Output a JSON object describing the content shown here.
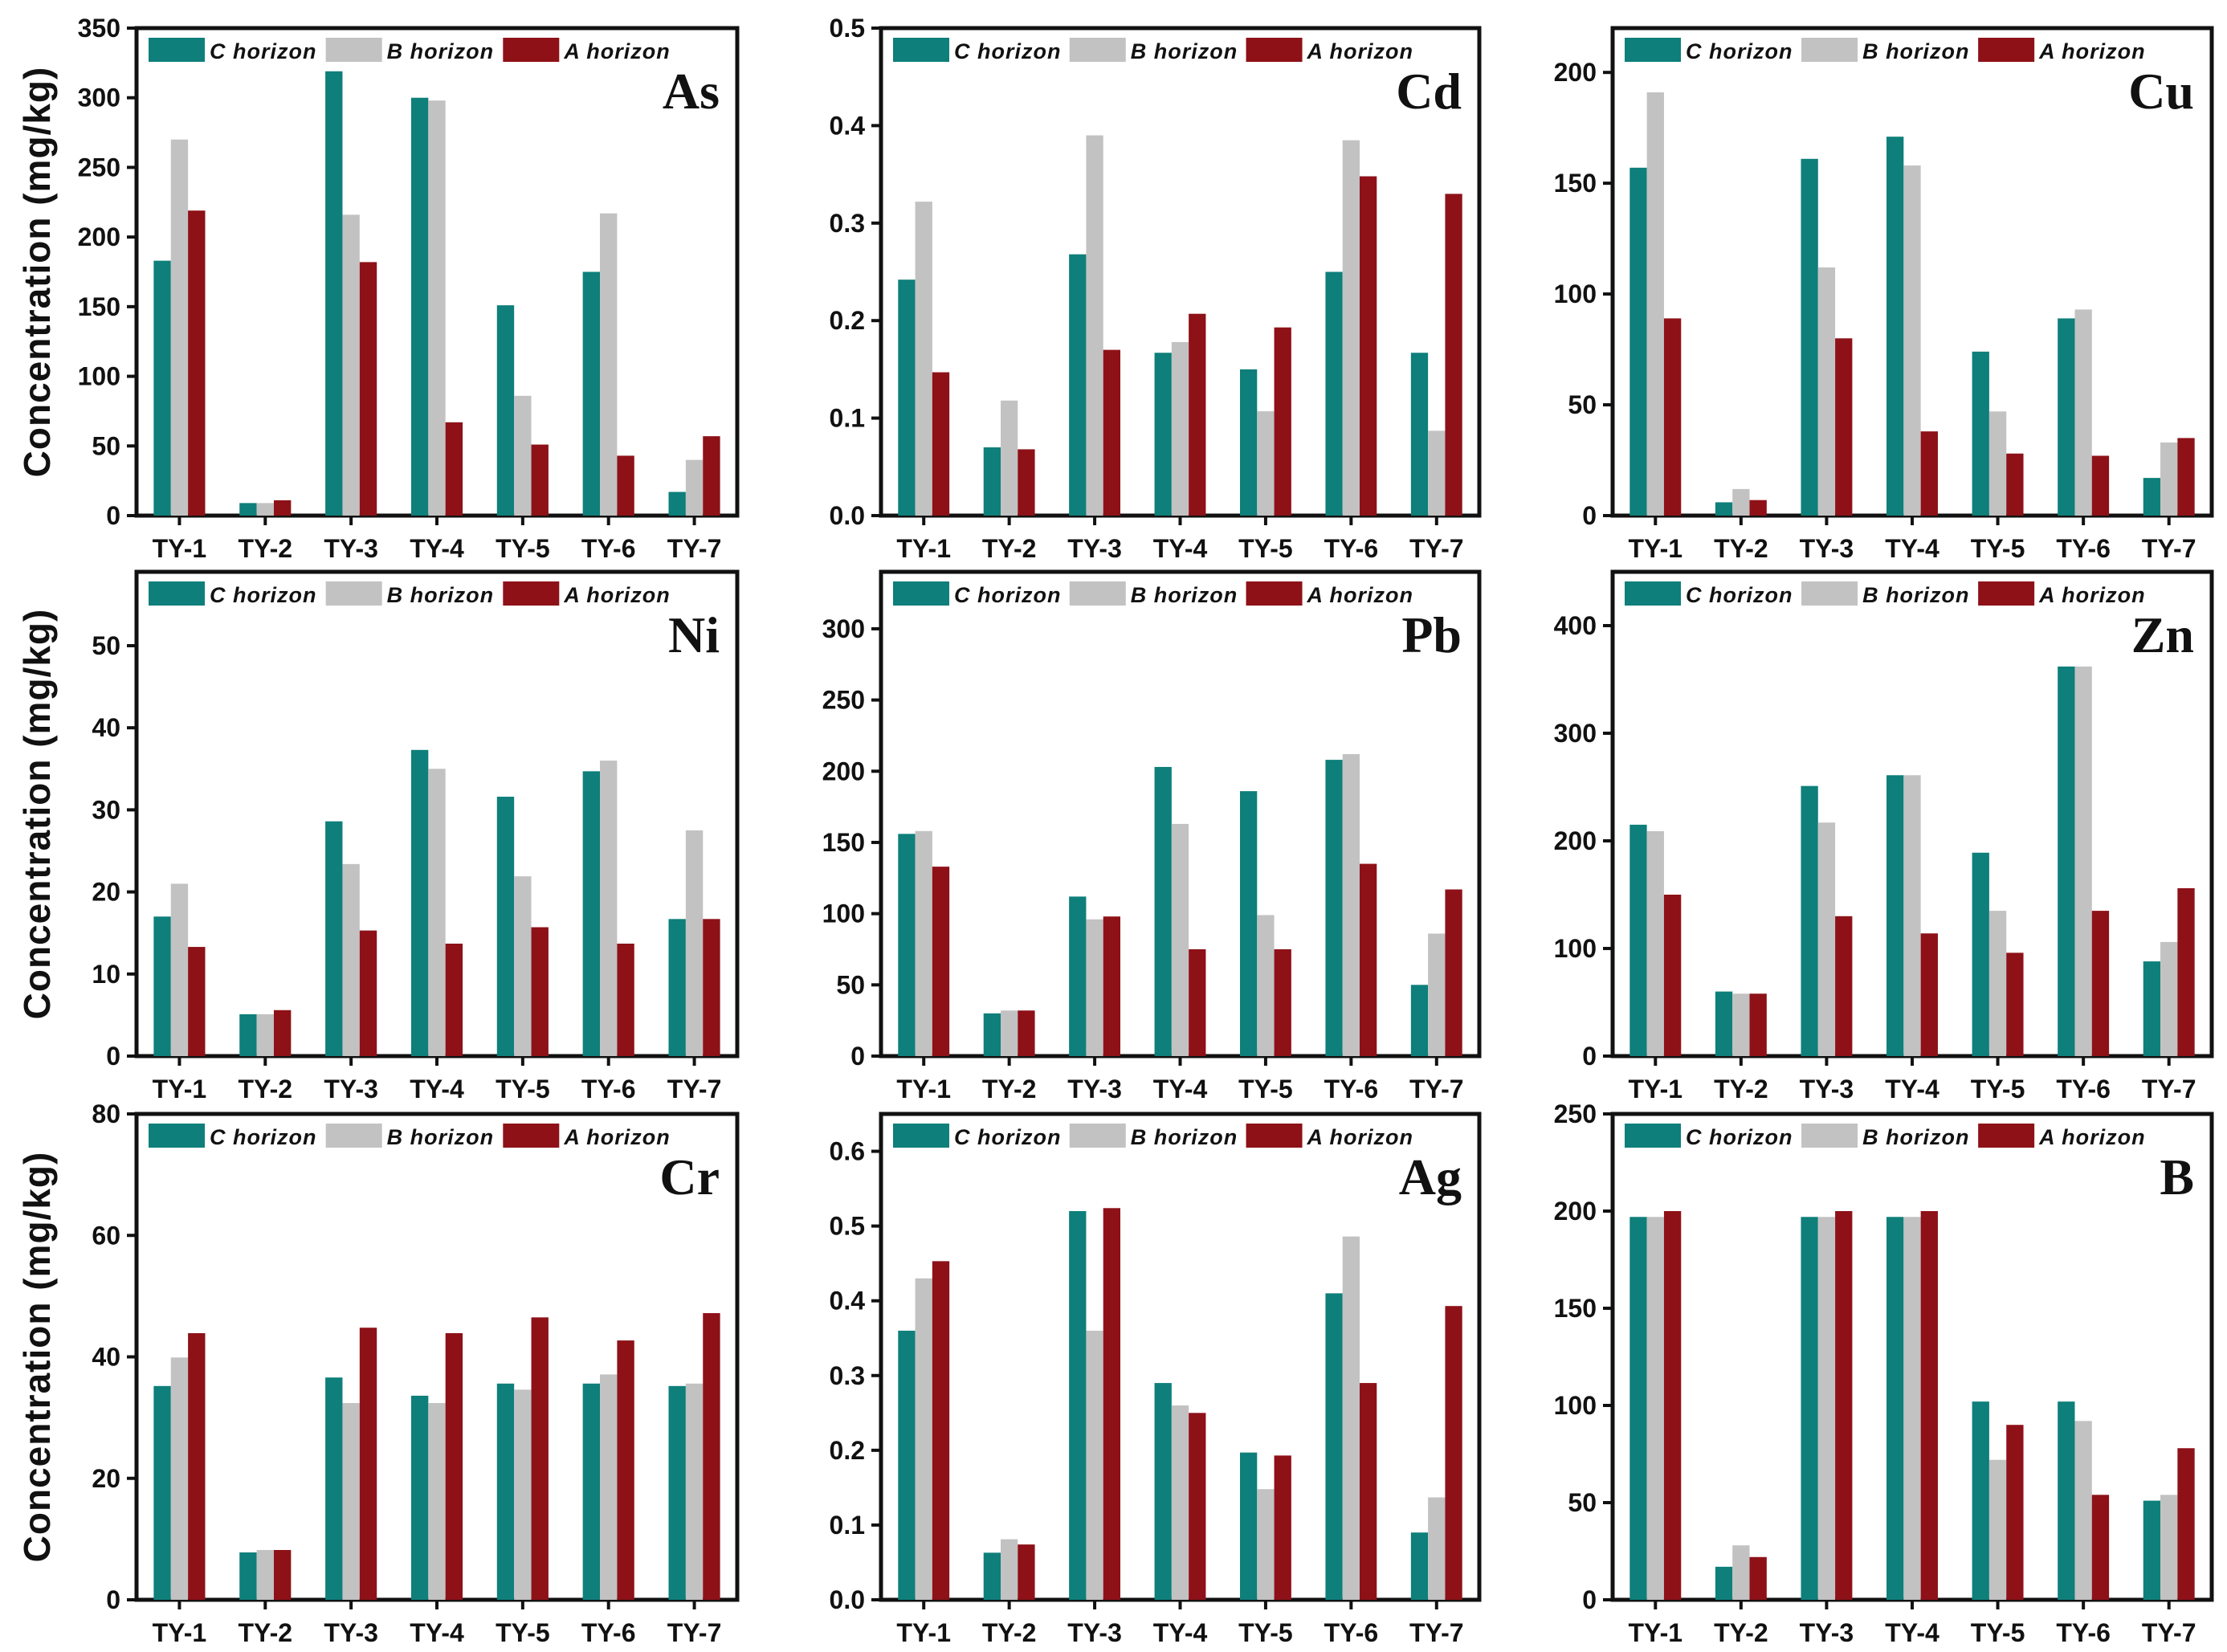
{
  "figure": {
    "ylabel": "Concentration (mg/kg)",
    "legend": [
      "C horizon",
      "B horizon",
      "A horizon"
    ]
  },
  "chart_data": [
    {
      "type": "bar",
      "title": "As",
      "xlabel": "",
      "ylabel": "Concentration (mg/kg)",
      "categories": [
        "TY-1",
        "TY-2",
        "TY-3",
        "TY-4",
        "TY-5",
        "TY-6",
        "TY-7"
      ],
      "ylim": [
        0,
        350
      ],
      "yticks": [
        0,
        50,
        100,
        150,
        200,
        250,
        300,
        350
      ],
      "ytick_labels": [
        "0",
        "50",
        "100",
        "150",
        "200",
        "250",
        "300",
        "350"
      ],
      "series": [
        {
          "name": "C horizon",
          "color": "#0e7f7a",
          "values": [
            183,
            9,
            319,
            300,
            151,
            175,
            17
          ]
        },
        {
          "name": "B horizon",
          "color": "#c2c2c2",
          "values": [
            270,
            9,
            216,
            298,
            86,
            217,
            40
          ]
        },
        {
          "name": "A horizon",
          "color": "#8e1118",
          "values": [
            219,
            11,
            182,
            67,
            51,
            43,
            57
          ]
        }
      ]
    },
    {
      "type": "bar",
      "title": "Cd",
      "xlabel": "",
      "ylabel": "",
      "categories": [
        "TY-1",
        "TY-2",
        "TY-3",
        "TY-4",
        "TY-5",
        "TY-6",
        "TY-7"
      ],
      "ylim": [
        0,
        0.5
      ],
      "yticks": [
        0,
        0.1,
        0.2,
        0.3,
        0.4,
        0.5
      ],
      "ytick_labels": [
        "0.0",
        "0.1",
        "0.2",
        "0.3",
        "0.4",
        "0.5"
      ],
      "series": [
        {
          "name": "C horizon",
          "color": "#0e7f7a",
          "values": [
            0.242,
            0.07,
            0.268,
            0.167,
            0.15,
            0.25,
            0.167
          ]
        },
        {
          "name": "B horizon",
          "color": "#c2c2c2",
          "values": [
            0.322,
            0.118,
            0.39,
            0.178,
            0.107,
            0.385,
            0.087
          ]
        },
        {
          "name": "A horizon",
          "color": "#8e1118",
          "values": [
            0.147,
            0.068,
            0.17,
            0.207,
            0.193,
            0.348,
            0.33
          ]
        }
      ]
    },
    {
      "type": "bar",
      "title": "Cu",
      "xlabel": "",
      "ylabel": "",
      "categories": [
        "TY-1",
        "TY-2",
        "TY-3",
        "TY-4",
        "TY-5",
        "TY-6",
        "TY-7"
      ],
      "ylim": [
        0,
        220
      ],
      "yticks": [
        0,
        50,
        100,
        150,
        200
      ],
      "ytick_labels": [
        "0",
        "50",
        "100",
        "150",
        "200"
      ],
      "series": [
        {
          "name": "C horizon",
          "color": "#0e7f7a",
          "values": [
            157,
            6,
            161,
            171,
            74,
            89,
            17
          ]
        },
        {
          "name": "B horizon",
          "color": "#c2c2c2",
          "values": [
            191,
            12,
            112,
            158,
            47,
            93,
            33
          ]
        },
        {
          "name": "A horizon",
          "color": "#8e1118",
          "values": [
            89,
            7,
            80,
            38,
            28,
            27,
            35
          ]
        }
      ]
    },
    {
      "type": "bar",
      "title": "Ni",
      "xlabel": "",
      "ylabel": "Concentration (mg/kg)",
      "categories": [
        "TY-1",
        "TY-2",
        "TY-3",
        "TY-4",
        "TY-5",
        "TY-6",
        "TY-7"
      ],
      "ylim": [
        0,
        59
      ],
      "yticks": [
        0,
        10,
        20,
        30,
        40,
        50
      ],
      "ytick_labels": [
        "0",
        "10",
        "20",
        "30",
        "40",
        "50"
      ],
      "series": [
        {
          "name": "C horizon",
          "color": "#0e7f7a",
          "values": [
            17.0,
            5.1,
            28.6,
            37.3,
            31.6,
            34.7,
            16.7
          ]
        },
        {
          "name": "B horizon",
          "color": "#c2c2c2",
          "values": [
            21.0,
            5.1,
            23.4,
            35.0,
            21.9,
            36.0,
            27.5
          ]
        },
        {
          "name": "A horizon",
          "color": "#8e1118",
          "values": [
            13.3,
            5.6,
            15.3,
            13.7,
            15.7,
            13.7,
            16.7
          ]
        }
      ]
    },
    {
      "type": "bar",
      "title": "Pb",
      "xlabel": "",
      "ylabel": "",
      "categories": [
        "TY-1",
        "TY-2",
        "TY-3",
        "TY-4",
        "TY-5",
        "TY-6",
        "TY-7"
      ],
      "ylim": [
        0,
        340
      ],
      "yticks": [
        0,
        50,
        100,
        150,
        200,
        250,
        300
      ],
      "ytick_labels": [
        "0",
        "50",
        "100",
        "150",
        "200",
        "250",
        "300"
      ],
      "series": [
        {
          "name": "C horizon",
          "color": "#0e7f7a",
          "values": [
            156,
            30,
            112,
            203,
            186,
            208,
            50
          ]
        },
        {
          "name": "B horizon",
          "color": "#c2c2c2",
          "values": [
            158,
            32,
            96,
            163,
            99,
            212,
            86
          ]
        },
        {
          "name": "A horizon",
          "color": "#8e1118",
          "values": [
            133,
            32,
            98,
            75,
            75,
            135,
            117
          ]
        }
      ]
    },
    {
      "type": "bar",
      "title": "Zn",
      "xlabel": "",
      "ylabel": "",
      "categories": [
        "TY-1",
        "TY-2",
        "TY-3",
        "TY-4",
        "TY-5",
        "TY-6",
        "TY-7"
      ],
      "ylim": [
        0,
        450
      ],
      "yticks": [
        0,
        100,
        200,
        300,
        400
      ],
      "ytick_labels": [
        "0",
        "100",
        "200",
        "300",
        "400"
      ],
      "series": [
        {
          "name": "C horizon",
          "color": "#0e7f7a",
          "values": [
            215,
            60,
            251,
            261,
            189,
            362,
            88
          ]
        },
        {
          "name": "B horizon",
          "color": "#c2c2c2",
          "values": [
            209,
            58,
            217,
            261,
            135,
            362,
            106
          ]
        },
        {
          "name": "A horizon",
          "color": "#8e1118",
          "values": [
            150,
            58,
            130,
            114,
            96,
            135,
            156
          ]
        }
      ]
    },
    {
      "type": "bar",
      "title": "Cr",
      "xlabel": "",
      "ylabel": "Concentration (mg/kg)",
      "categories": [
        "TY-1",
        "TY-2",
        "TY-3",
        "TY-4",
        "TY-5",
        "TY-6",
        "TY-7"
      ],
      "ylim": [
        0,
        80
      ],
      "yticks": [
        0,
        20,
        40,
        60,
        80
      ],
      "ytick_labels": [
        "0",
        "20",
        "40",
        "60",
        "80"
      ],
      "series": [
        {
          "name": "C horizon",
          "color": "#0e7f7a",
          "values": [
            35.2,
            7.8,
            36.6,
            33.6,
            35.6,
            35.6,
            35.2
          ]
        },
        {
          "name": "B horizon",
          "color": "#c2c2c2",
          "values": [
            39.9,
            8.2,
            32.4,
            32.4,
            34.6,
            37.1,
            35.6
          ]
        },
        {
          "name": "A horizon",
          "color": "#8e1118",
          "values": [
            43.9,
            8.2,
            44.8,
            43.9,
            46.5,
            42.7,
            47.2
          ]
        }
      ]
    },
    {
      "type": "bar",
      "title": "Ag",
      "xlabel": "",
      "ylabel": "",
      "categories": [
        "TY-1",
        "TY-2",
        "TY-3",
        "TY-4",
        "TY-5",
        "TY-6",
        "TY-7"
      ],
      "ylim": [
        0,
        0.65
      ],
      "yticks": [
        0,
        0.1,
        0.2,
        0.3,
        0.4,
        0.5,
        0.6
      ],
      "ytick_labels": [
        "0.0",
        "0.1",
        "0.2",
        "0.3",
        "0.4",
        "0.5",
        "0.6"
      ],
      "series": [
        {
          "name": "C horizon",
          "color": "#0e7f7a",
          "values": [
            0.36,
            0.063,
            0.52,
            0.29,
            0.197,
            0.41,
            0.09
          ]
        },
        {
          "name": "B horizon",
          "color": "#c2c2c2",
          "values": [
            0.43,
            0.081,
            0.36,
            0.26,
            0.148,
            0.486,
            0.137
          ]
        },
        {
          "name": "A horizon",
          "color": "#8e1118",
          "values": [
            0.453,
            0.074,
            0.524,
            0.25,
            0.193,
            0.29,
            0.393
          ]
        }
      ]
    },
    {
      "type": "bar",
      "title": "B",
      "xlabel": "",
      "ylabel": "",
      "categories": [
        "TY-1",
        "TY-2",
        "TY-3",
        "TY-4",
        "TY-5",
        "TY-6",
        "TY-7"
      ],
      "ylim": [
        0,
        250
      ],
      "yticks": [
        0,
        50,
        100,
        150,
        200,
        250
      ],
      "ytick_labels": [
        "0",
        "50",
        "100",
        "150",
        "200",
        "250"
      ],
      "series": [
        {
          "name": "C horizon",
          "color": "#0e7f7a",
          "values": [
            197,
            17,
            197,
            197,
            102,
            102,
            51
          ]
        },
        {
          "name": "B horizon",
          "color": "#c2c2c2",
          "values": [
            197,
            28,
            197,
            197,
            72,
            92,
            54
          ]
        },
        {
          "name": "A horizon",
          "color": "#8e1118",
          "values": [
            200,
            22,
            200,
            200,
            90,
            54,
            78
          ]
        }
      ]
    }
  ]
}
